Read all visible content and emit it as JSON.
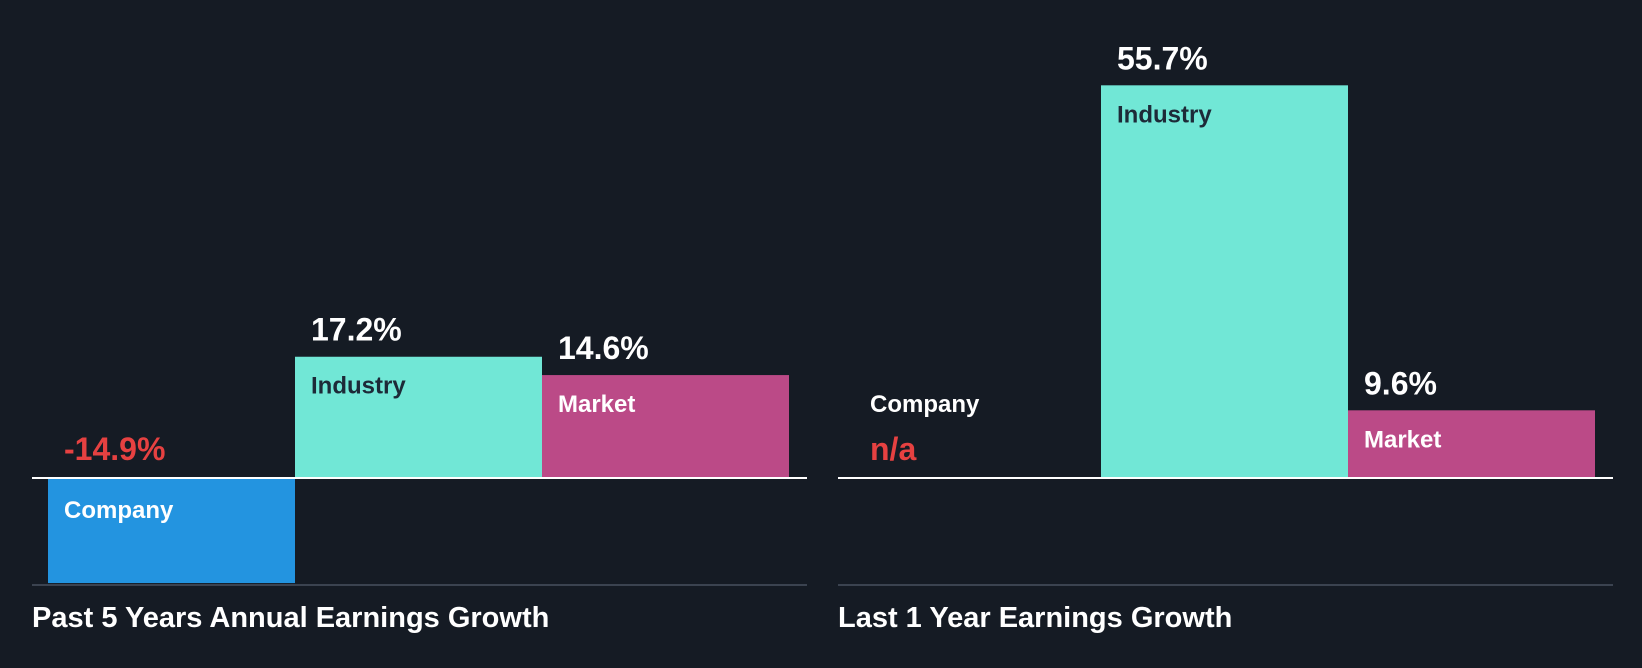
{
  "colors": {
    "background": "#151b24",
    "company": "#2394e0",
    "industry": "#71e7d6",
    "market": "#bb4a87",
    "negative": "#e64141",
    "value_text": "#ffffff",
    "label_on_light": "#1d2a38",
    "label_on_dark": "#ffffff",
    "axis": "#ffffff",
    "baseline_bottom": "#3b4350"
  },
  "chart_data": [
    {
      "type": "bar",
      "title": "Past 5 Years Annual Earnings Growth",
      "categories": [
        "Company",
        "Industry",
        "Market"
      ],
      "values": [
        -14.9,
        17.2,
        14.6
      ],
      "value_labels": [
        "-14.9%",
        "17.2%",
        "14.6%"
      ],
      "unit": "%",
      "ylim": [
        -14.9,
        55.7
      ],
      "grid": false,
      "legend": "none"
    },
    {
      "type": "bar",
      "title": "Last 1 Year Earnings Growth",
      "categories": [
        "Company",
        "Industry",
        "Market"
      ],
      "values": [
        null,
        55.7,
        9.6
      ],
      "value_labels": [
        "n/a",
        "55.7%",
        "9.6%"
      ],
      "unit": "%",
      "ylim": [
        -14.9,
        55.7
      ],
      "grid": false,
      "legend": "none"
    }
  ]
}
